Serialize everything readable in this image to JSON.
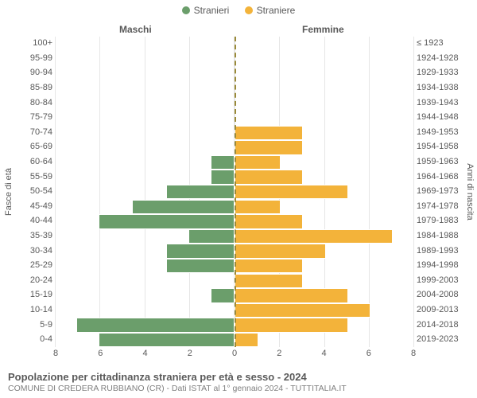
{
  "legend": {
    "male": {
      "label": "Stranieri",
      "color": "#6b9e6b"
    },
    "female": {
      "label": "Straniere",
      "color": "#f3b33a"
    }
  },
  "gender_headers": {
    "left": "Maschi",
    "right": "Femmine"
  },
  "axis_titles": {
    "left": "Fasce di età",
    "right": "Anni di nascita"
  },
  "chart": {
    "xmax": 8,
    "xticks": [
      8,
      6,
      4,
      2,
      0,
      2,
      4,
      6,
      8
    ],
    "grid_color": "#e6e6e6",
    "center_line_color": "#9a8a3a",
    "bar_border": "#ffffff",
    "row_height_pct": 4.2,
    "row_gap_pct": 0.57,
    "n_rows": 21,
    "categories": [
      {
        "age": "100+",
        "birth": "≤ 1923",
        "m": 0,
        "f": 0
      },
      {
        "age": "95-99",
        "birth": "1924-1928",
        "m": 0,
        "f": 0
      },
      {
        "age": "90-94",
        "birth": "1929-1933",
        "m": 0,
        "f": 0
      },
      {
        "age": "85-89",
        "birth": "1934-1938",
        "m": 0,
        "f": 0
      },
      {
        "age": "80-84",
        "birth": "1939-1943",
        "m": 0,
        "f": 0
      },
      {
        "age": "75-79",
        "birth": "1944-1948",
        "m": 0,
        "f": 0
      },
      {
        "age": "70-74",
        "birth": "1949-1953",
        "m": 0,
        "f": 3
      },
      {
        "age": "65-69",
        "birth": "1954-1958",
        "m": 0,
        "f": 3
      },
      {
        "age": "60-64",
        "birth": "1959-1963",
        "m": 1,
        "f": 2
      },
      {
        "age": "55-59",
        "birth": "1964-1968",
        "m": 1,
        "f": 3
      },
      {
        "age": "50-54",
        "birth": "1969-1973",
        "m": 3,
        "f": 5
      },
      {
        "age": "45-49",
        "birth": "1974-1978",
        "m": 4.5,
        "f": 2
      },
      {
        "age": "40-44",
        "birth": "1979-1983",
        "m": 6,
        "f": 3
      },
      {
        "age": "35-39",
        "birth": "1984-1988",
        "m": 2,
        "f": 7
      },
      {
        "age": "30-34",
        "birth": "1989-1993",
        "m": 3,
        "f": 4
      },
      {
        "age": "25-29",
        "birth": "1994-1998",
        "m": 3,
        "f": 3
      },
      {
        "age": "20-24",
        "birth": "1999-2003",
        "m": 0,
        "f": 3
      },
      {
        "age": "15-19",
        "birth": "2004-2008",
        "m": 1,
        "f": 5
      },
      {
        "age": "10-14",
        "birth": "2009-2013",
        "m": 0,
        "f": 6
      },
      {
        "age": "5-9",
        "birth": "2014-2018",
        "m": 7,
        "f": 5
      },
      {
        "age": "0-4",
        "birth": "2019-2023",
        "m": 6,
        "f": 1
      }
    ]
  },
  "footer": {
    "title": "Popolazione per cittadinanza straniera per età e sesso - 2024",
    "subtitle": "COMUNE DI CREDERA RUBBIANO (CR) - Dati ISTAT al 1° gennaio 2024 - TUTTITALIA.IT"
  },
  "fonts": {
    "legend_size": 12,
    "axis_tick_size": 11,
    "title_size": 13,
    "subtitle_size": 10.5
  }
}
